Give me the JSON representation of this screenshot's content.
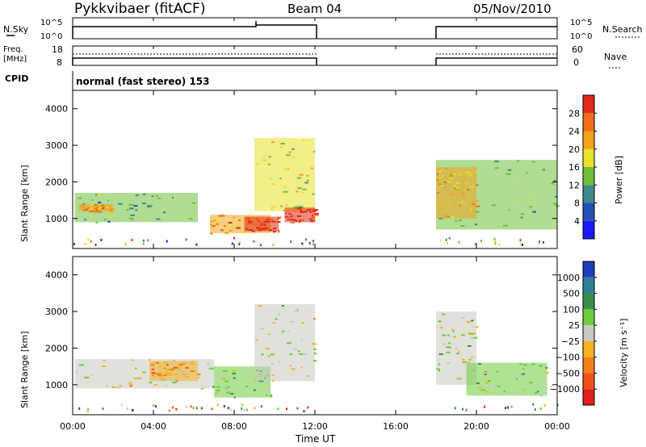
{
  "header": {
    "station": "Pykkvibaer (fitACF)",
    "beam": "Beam 04",
    "date": "05/Nov/2010"
  },
  "noise_panel": {
    "left_label": "N.Sky",
    "right_label": "N.Search",
    "ticks": [
      "10^5",
      "10^0"
    ],
    "right_ticks": [
      "10^5",
      "10^0"
    ]
  },
  "freq_panel": {
    "left_label_1": "Freq.",
    "left_label_2": "[MHz]",
    "right_label": "Nave",
    "left_ticks": [
      "18",
      "8"
    ],
    "right_ticks": [
      "60",
      "0"
    ]
  },
  "cpid": {
    "label": "CPID",
    "value": "normal (fast stereo) 153"
  },
  "power_panel": {
    "ylabel": "Slant Range [km]",
    "yticks": [
      "1000",
      "2000",
      "3000",
      "4000"
    ],
    "cbar_label": "Power [dB]",
    "cbar_ticks": [
      "4",
      "8",
      "12",
      "16",
      "20",
      "24",
      "28"
    ],
    "cbar_colors": [
      "#1a1aff",
      "#2451b3",
      "#3f8a8a",
      "#6fbf3a",
      "#e8e02a",
      "#f2a21e",
      "#ef6c1a",
      "#e02a1a"
    ]
  },
  "velocity_panel": {
    "ylabel": "Slant Range [km]",
    "yticks": [
      "1000",
      "2000",
      "3000",
      "4000"
    ],
    "cbar_label": "Velocity [m s⁻¹]",
    "cbar_ticks": [
      "1000",
      "500",
      "100",
      "25",
      "−25",
      "−100",
      "−500",
      "−1000"
    ],
    "cbar_colors": [
      "#1c3fb8",
      "#2f7f9a",
      "#3b8c4a",
      "#6ccc3a",
      "#c8c8c0",
      "#f5b21f",
      "#f07f1a",
      "#ef501a",
      "#e0201a"
    ]
  },
  "x_axis": {
    "label": "Time UT",
    "ticks": [
      "00:00",
      "04:00",
      "08:00",
      "12:00",
      "16:00",
      "20:00",
      "00:00"
    ]
  },
  "chart_data": {
    "type": "heatmap",
    "title": "Pykkvibaer (fitACF)  Beam 04  05/Nov/2010",
    "x_range_hours": [
      0,
      24
    ],
    "y_range_km": [
      180,
      4500
    ],
    "data_gap_hours": [
      12.0,
      18.0
    ],
    "panels": [
      {
        "name": "Power [dB]",
        "range": [
          0,
          30
        ],
        "regions": [
          {
            "t": [
              0.1,
              6.2
            ],
            "km": [
              900,
              1700
            ],
            "value": 12
          },
          {
            "t": [
              0.3,
              2.0
            ],
            "km": [
              1200,
              1400
            ],
            "value": 22
          },
          {
            "t": [
              6.8,
              9.8
            ],
            "km": [
              600,
              1100
            ],
            "value": 22
          },
          {
            "t": [
              8.5,
              10.2
            ],
            "km": [
              650,
              1050
            ],
            "value": 28
          },
          {
            "t": [
              9.0,
              12.0
            ],
            "km": [
              1200,
              3200
            ],
            "value": 16
          },
          {
            "t": [
              10.5,
              12.0
            ],
            "km": [
              900,
              1300
            ],
            "value": 28
          },
          {
            "t": [
              18.0,
              24.0
            ],
            "km": [
              700,
              2600
            ],
            "value": 12
          },
          {
            "t": [
              18.0,
              20.0
            ],
            "km": [
              1000,
              2400
            ],
            "value": 20
          }
        ]
      },
      {
        "name": "Velocity [m s-1]",
        "range": [
          -1000,
          1000
        ],
        "regions": [
          {
            "t": [
              0.1,
              7.0
            ],
            "km": [
              900,
              1700
            ],
            "value": 0
          },
          {
            "t": [
              3.8,
              6.2
            ],
            "km": [
              1100,
              1650
            ],
            "value": -300
          },
          {
            "t": [
              7.0,
              9.8
            ],
            "km": [
              650,
              1500
            ],
            "value": 150
          },
          {
            "t": [
              9.0,
              12.0
            ],
            "km": [
              1100,
              3200
            ],
            "value": 0
          },
          {
            "t": [
              18.0,
              20.0
            ],
            "km": [
              1000,
              3000
            ],
            "value": 0
          },
          {
            "t": [
              19.5,
              23.5
            ],
            "km": [
              700,
              1600
            ],
            "value": 120
          }
        ]
      }
    ]
  }
}
